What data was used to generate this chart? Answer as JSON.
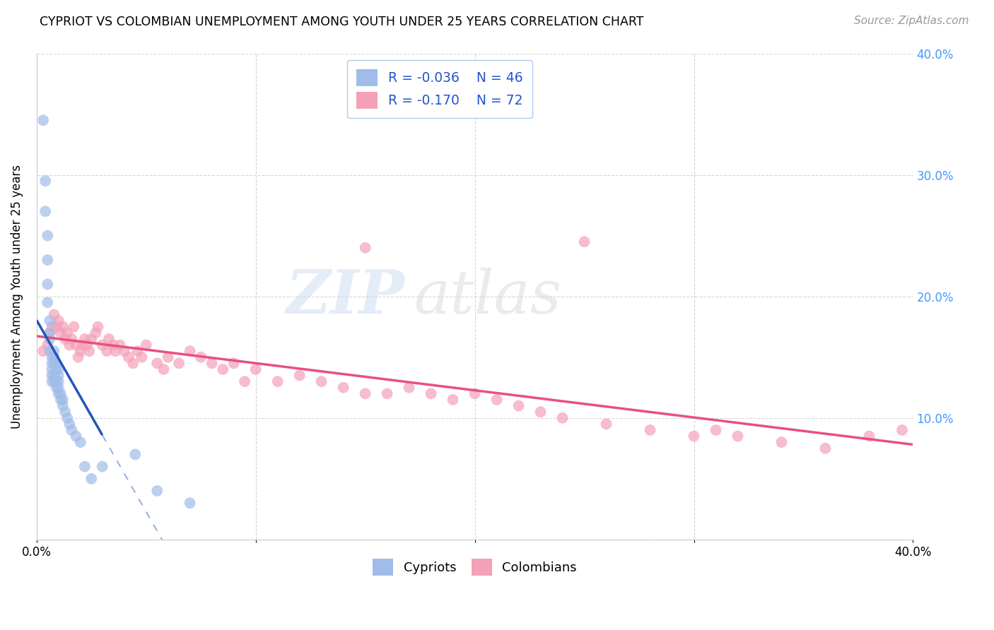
{
  "title": "CYPRIOT VS COLOMBIAN UNEMPLOYMENT AMONG YOUTH UNDER 25 YEARS CORRELATION CHART",
  "source": "Source: ZipAtlas.com",
  "ylabel": "Unemployment Among Youth under 25 years",
  "xlim": [
    0.0,
    0.4
  ],
  "ylim": [
    0.0,
    0.4
  ],
  "cypriot_color": "#a0bce8",
  "colombian_color": "#f4a0b8",
  "cypriot_line_color": "#2255bb",
  "colombian_line_color": "#e85080",
  "cypriot_R": -0.036,
  "cypriot_N": 46,
  "colombian_R": -0.17,
  "colombian_N": 72,
  "watermark_zip": "ZIP",
  "watermark_atlas": "atlas",
  "ytick_color": "#4499ff",
  "right_ytick_labels": [
    "40.0%",
    "30.0%",
    "20.0%",
    "10.0%"
  ],
  "right_ytick_vals": [
    0.4,
    0.3,
    0.2,
    0.1
  ],
  "cypriot_x": [
    0.003,
    0.004,
    0.004,
    0.005,
    0.005,
    0.005,
    0.005,
    0.006,
    0.006,
    0.006,
    0.006,
    0.007,
    0.007,
    0.007,
    0.007,
    0.007,
    0.008,
    0.008,
    0.008,
    0.008,
    0.008,
    0.009,
    0.009,
    0.009,
    0.009,
    0.01,
    0.01,
    0.01,
    0.01,
    0.01,
    0.011,
    0.011,
    0.012,
    0.012,
    0.013,
    0.014,
    0.015,
    0.016,
    0.018,
    0.02,
    0.022,
    0.025,
    0.03,
    0.045,
    0.055,
    0.07
  ],
  "cypriot_y": [
    0.345,
    0.295,
    0.27,
    0.25,
    0.23,
    0.21,
    0.195,
    0.18,
    0.17,
    0.165,
    0.155,
    0.15,
    0.145,
    0.14,
    0.135,
    0.13,
    0.155,
    0.15,
    0.145,
    0.135,
    0.13,
    0.145,
    0.14,
    0.13,
    0.125,
    0.14,
    0.135,
    0.13,
    0.125,
    0.12,
    0.12,
    0.115,
    0.115,
    0.11,
    0.105,
    0.1,
    0.095,
    0.09,
    0.085,
    0.08,
    0.06,
    0.05,
    0.06,
    0.07,
    0.04,
    0.03
  ],
  "colombian_x": [
    0.003,
    0.005,
    0.006,
    0.007,
    0.008,
    0.009,
    0.01,
    0.011,
    0.012,
    0.013,
    0.014,
    0.015,
    0.016,
    0.017,
    0.018,
    0.019,
    0.02,
    0.021,
    0.022,
    0.023,
    0.024,
    0.025,
    0.027,
    0.028,
    0.03,
    0.032,
    0.033,
    0.035,
    0.036,
    0.038,
    0.04,
    0.042,
    0.044,
    0.046,
    0.048,
    0.05,
    0.055,
    0.058,
    0.06,
    0.065,
    0.07,
    0.075,
    0.08,
    0.085,
    0.09,
    0.095,
    0.1,
    0.11,
    0.12,
    0.13,
    0.14,
    0.15,
    0.16,
    0.17,
    0.18,
    0.19,
    0.2,
    0.21,
    0.22,
    0.23,
    0.24,
    0.26,
    0.28,
    0.3,
    0.31,
    0.32,
    0.34,
    0.36,
    0.38,
    0.395,
    0.15,
    0.25
  ],
  "colombian_y": [
    0.155,
    0.16,
    0.17,
    0.175,
    0.185,
    0.175,
    0.18,
    0.17,
    0.175,
    0.165,
    0.17,
    0.16,
    0.165,
    0.175,
    0.16,
    0.15,
    0.155,
    0.16,
    0.165,
    0.16,
    0.155,
    0.165,
    0.17,
    0.175,
    0.16,
    0.155,
    0.165,
    0.16,
    0.155,
    0.16,
    0.155,
    0.15,
    0.145,
    0.155,
    0.15,
    0.16,
    0.145,
    0.14,
    0.15,
    0.145,
    0.155,
    0.15,
    0.145,
    0.14,
    0.145,
    0.13,
    0.14,
    0.13,
    0.135,
    0.13,
    0.125,
    0.12,
    0.12,
    0.125,
    0.12,
    0.115,
    0.12,
    0.115,
    0.11,
    0.105,
    0.1,
    0.095,
    0.09,
    0.085,
    0.09,
    0.085,
    0.08,
    0.075,
    0.085,
    0.09,
    0.24,
    0.245
  ]
}
